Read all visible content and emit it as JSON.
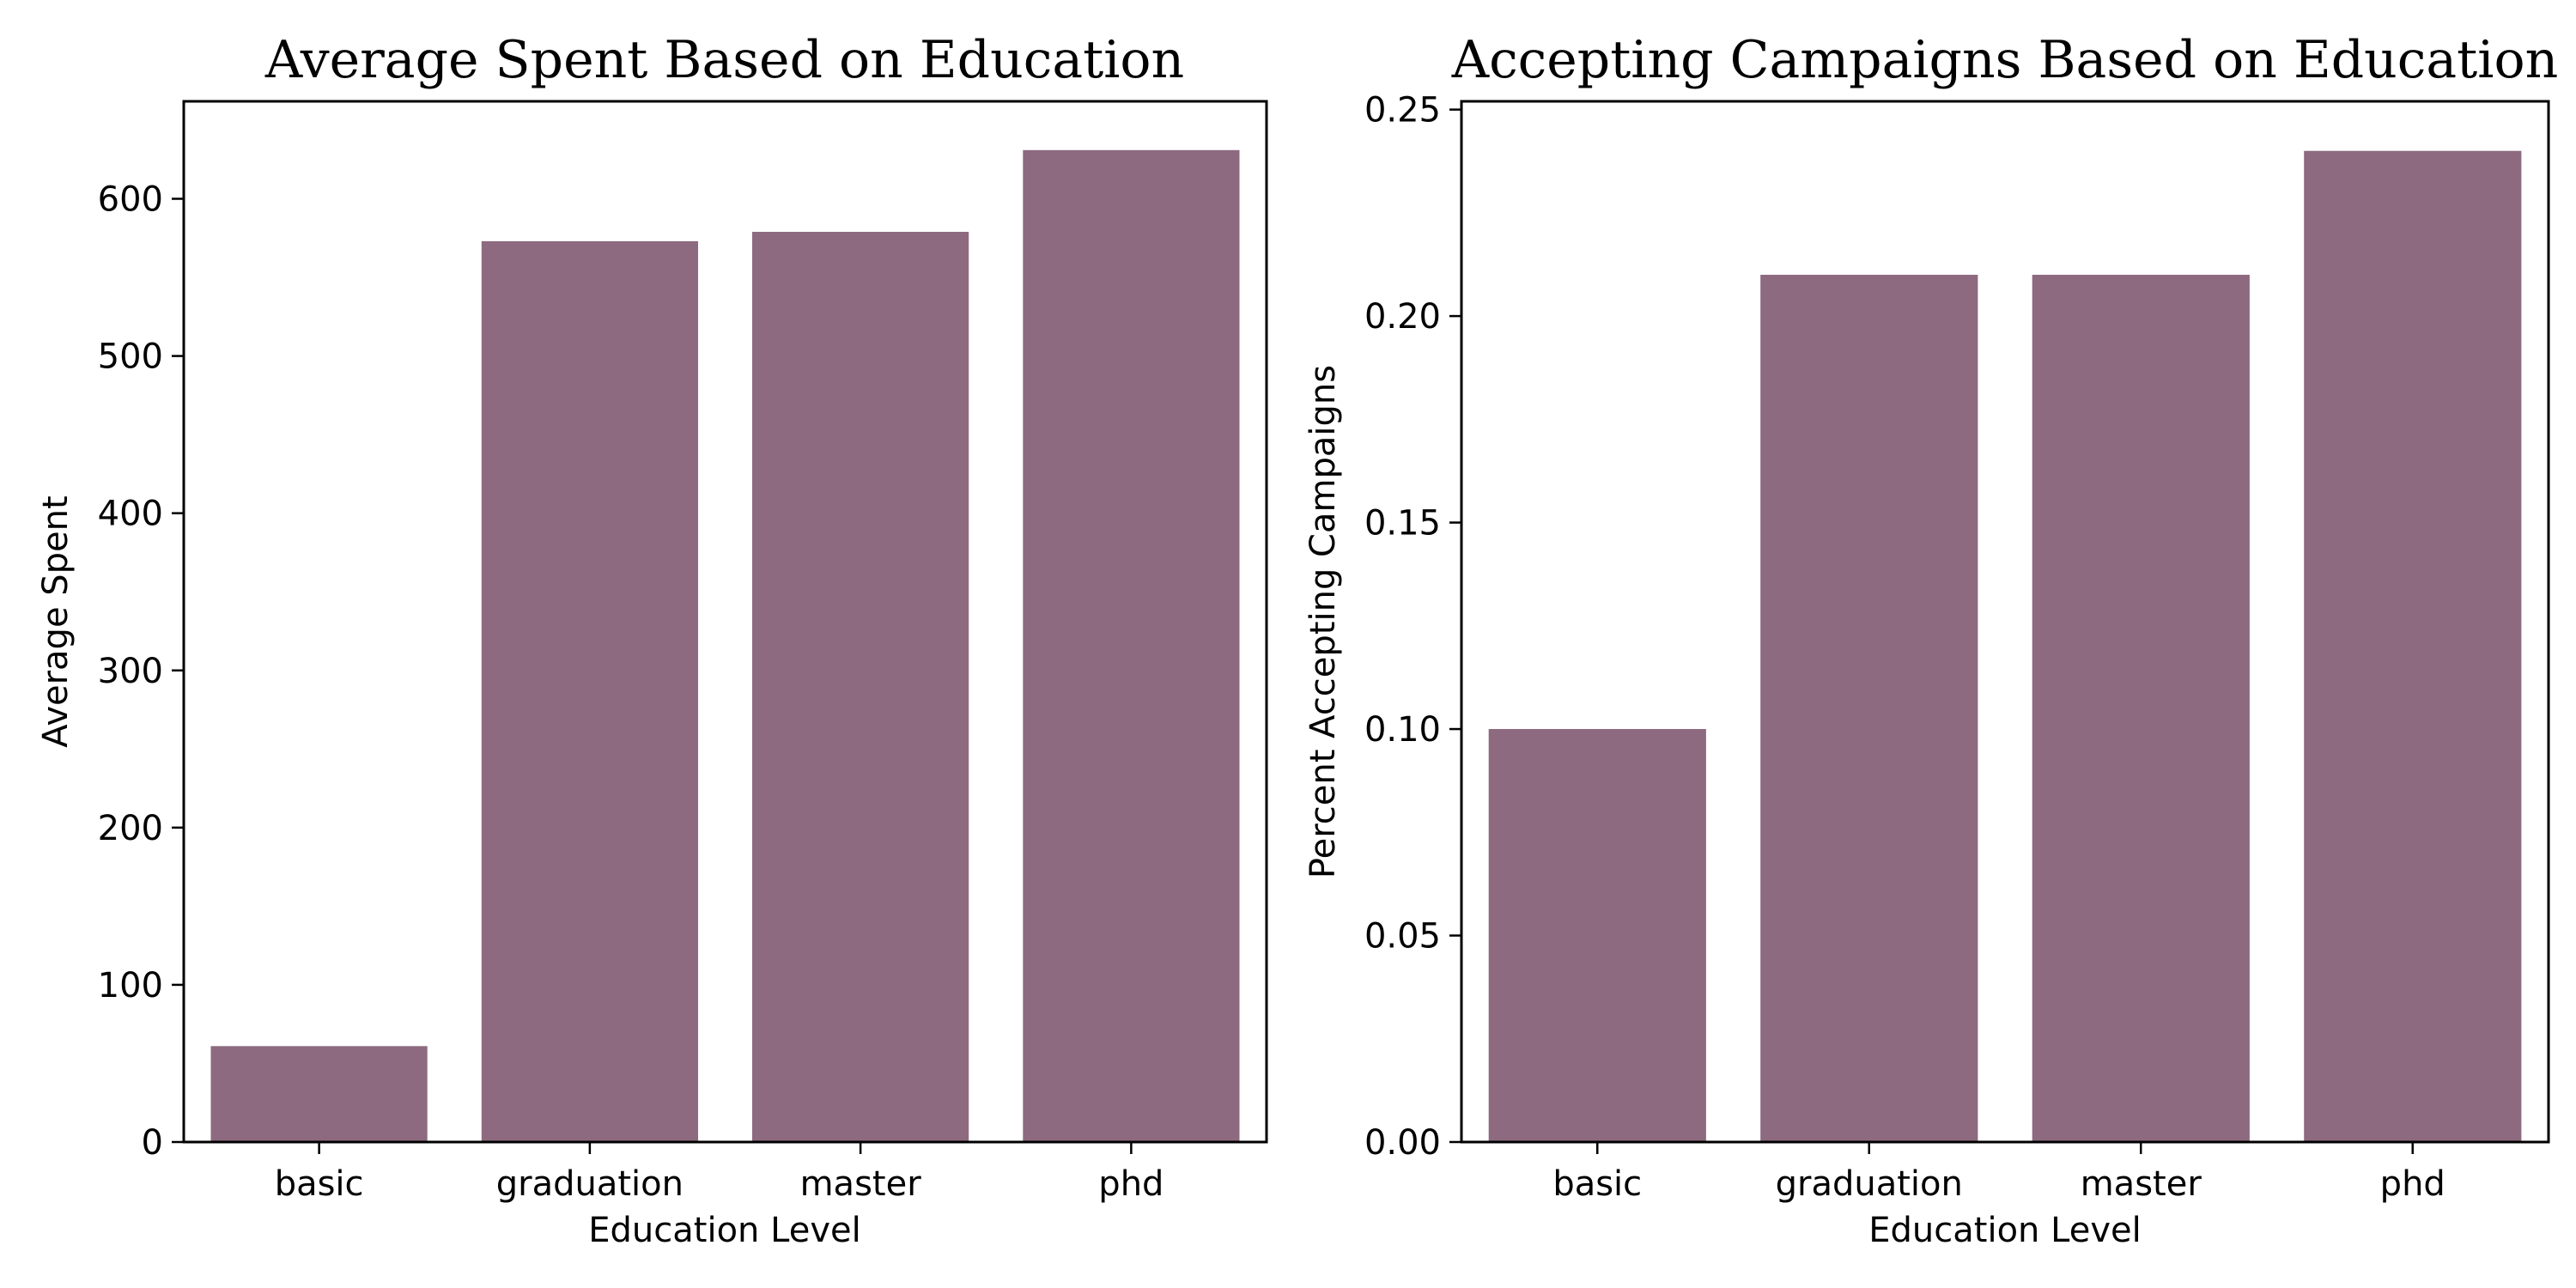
{
  "colors": {
    "bar": "#8d6a80",
    "axis": "#000000",
    "background": "#ffffff"
  },
  "chart_data": [
    {
      "type": "bar",
      "title": "Average Spent Based on Education",
      "xlabel": "Education Level",
      "ylabel": "Average Spent",
      "categories": [
        "basic",
        "graduation",
        "master",
        "phd"
      ],
      "values": [
        61,
        573,
        579,
        631
      ],
      "ylim": [
        0,
        662
      ],
      "yticks": [
        0,
        100,
        200,
        300,
        400,
        500,
        600
      ],
      "ytick_labels": [
        "0",
        "100",
        "200",
        "300",
        "400",
        "500",
        "600"
      ],
      "grid": false,
      "legend": "none"
    },
    {
      "type": "bar",
      "title": "Accepting Campaigns Based on Education",
      "xlabel": "Education Level",
      "ylabel": "Percent Accepting Campaigns",
      "categories": [
        "basic",
        "graduation",
        "master",
        "phd"
      ],
      "values": [
        0.1,
        0.21,
        0.21,
        0.24
      ],
      "ylim": [
        0,
        0.252
      ],
      "yticks": [
        0,
        0.05,
        0.1,
        0.15,
        0.2,
        0.25
      ],
      "ytick_labels": [
        "0.00",
        "0.05",
        "0.10",
        "0.15",
        "0.20",
        "0.25"
      ],
      "grid": false,
      "legend": "none"
    }
  ]
}
